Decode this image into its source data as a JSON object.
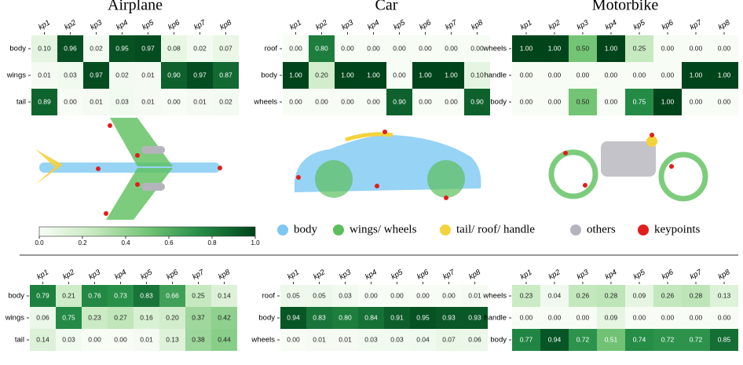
{
  "chart_data": [
    {
      "type": "heatmap",
      "title": "Airplane",
      "x": [
        "kp1",
        "kp2",
        "kp3",
        "kp4",
        "kp5",
        "kp6",
        "kp7",
        "kp8"
      ],
      "y": [
        "body",
        "wings",
        "tail"
      ],
      "values": [
        [
          0.1,
          0.96,
          0.02,
          0.95,
          0.97,
          0.08,
          0.02,
          0.07
        ],
        [
          0.01,
          0.03,
          0.97,
          0.02,
          0.01,
          0.9,
          0.97,
          0.87
        ],
        [
          0.89,
          0.0,
          0.01,
          0.03,
          0.01,
          0.0,
          0.01,
          0.02
        ]
      ],
      "value_labels": [
        [
          "0.10",
          "0.96",
          "0.02",
          "0.95",
          "0.97",
          "0.08",
          "0.02",
          "0.07"
        ],
        [
          "0.01",
          "0.03",
          "0.97",
          "0.02",
          "0.01",
          "0.90",
          "0.97",
          "0.87"
        ],
        [
          "0.89",
          "0.00",
          "0.01",
          "0.03",
          "0.01",
          "0.00",
          "0.01",
          "0.02"
        ]
      ]
    },
    {
      "type": "heatmap",
      "title": "Car",
      "x": [
        "kp1",
        "kp2",
        "kp3",
        "kp4",
        "kp5",
        "kp6",
        "kp7",
        "kp8"
      ],
      "y": [
        "roof",
        "body",
        "wheels"
      ],
      "values": [
        [
          0,
          0.8,
          0,
          0,
          0,
          0,
          0,
          0
        ],
        [
          1,
          0.2,
          1,
          1,
          0,
          1,
          1,
          0.1
        ],
        [
          0,
          0,
          0,
          0,
          0.9,
          0,
          0,
          0.9
        ]
      ],
      "value_labels": [
        [
          "0.00",
          "0.80",
          "0.00",
          "0.00",
          "0.00",
          "0.00",
          "0.00",
          "0.00"
        ],
        [
          "1.00",
          "0.20",
          "1.00",
          "1.00",
          "0.00",
          "1.00",
          "1.00",
          "0.10"
        ],
        [
          "0.00",
          "0.00",
          "0.00",
          "0.00",
          "0.90",
          "0.00",
          "0.00",
          "0.90"
        ]
      ]
    },
    {
      "type": "heatmap",
      "title": "Motorbike",
      "x": [
        "kp1",
        "kp2",
        "kp3",
        "kp4",
        "kp5",
        "kp6",
        "kp7",
        "kp8"
      ],
      "y": [
        "wheels",
        "handle",
        "body"
      ],
      "values": [
        [
          1,
          1,
          0.5,
          1,
          0.25,
          0,
          0,
          0
        ],
        [
          0,
          0,
          0,
          0,
          0,
          0,
          1,
          1
        ],
        [
          0,
          0,
          0.5,
          0,
          0.75,
          1,
          0,
          0
        ]
      ],
      "value_labels": [
        [
          "1.00",
          "1.00",
          "0.50",
          "1.00",
          "0.25",
          "0.00",
          "0.00",
          "0.00"
        ],
        [
          "0.00",
          "0.00",
          "0.00",
          "0.00",
          "0.00",
          "0.00",
          "1.00",
          "1.00"
        ],
        [
          "0.00",
          "0.00",
          "0.50",
          "0.00",
          "0.75",
          "1.00",
          "0.00",
          "0.00"
        ]
      ]
    },
    {
      "type": "heatmap",
      "x": [
        "kp1",
        "kp2",
        "kp3",
        "kp4",
        "kp5",
        "kp6",
        "kp7",
        "kp8"
      ],
      "y": [
        "body",
        "wings",
        "tail"
      ],
      "values": [
        [
          0.79,
          0.21,
          0.76,
          0.73,
          0.83,
          0.66,
          0.25,
          0.14
        ],
        [
          0.06,
          0.75,
          0.23,
          0.27,
          0.16,
          0.2,
          0.37,
          0.42
        ],
        [
          0.14,
          0.03,
          0,
          0,
          0.01,
          0.13,
          0.38,
          0.44
        ]
      ],
      "value_labels": [
        [
          "0.79",
          "0.21",
          "0.76",
          "0.73",
          "0.83",
          "0.66",
          "0.25",
          "0.14"
        ],
        [
          "0.06",
          "0.75",
          "0.23",
          "0.27",
          "0.16",
          "0.20",
          "0.37",
          "0.42"
        ],
        [
          "0.14",
          "0.03",
          "0.00",
          "0.00",
          "0.01",
          "0.13",
          "0.38",
          "0.44"
        ]
      ]
    },
    {
      "type": "heatmap",
      "x": [
        "kp1",
        "kp2",
        "kp3",
        "kp4",
        "kp5",
        "kp6",
        "kp7",
        "kp8"
      ],
      "y": [
        "roof",
        "body",
        "wheels"
      ],
      "values": [
        [
          0.05,
          0.05,
          0.03,
          0,
          0,
          0,
          0,
          0.01
        ],
        [
          0.94,
          0.83,
          0.8,
          0.84,
          0.91,
          0.95,
          0.93,
          0.93
        ],
        [
          0,
          0.01,
          0.01,
          0.03,
          0.03,
          0.04,
          0.07,
          0.06
        ]
      ],
      "value_labels": [
        [
          "0.05",
          "0.05",
          "0.03",
          "0.00",
          "0.00",
          "0.00",
          "0.00",
          "0.01"
        ],
        [
          "0.94",
          "0.83",
          "0.80",
          "0.84",
          "0.91",
          "0.95",
          "0.93",
          "0.93"
        ],
        [
          "0.00",
          "0.01",
          "0.01",
          "0.03",
          "0.03",
          "0.04",
          "0.07",
          "0.06"
        ]
      ]
    },
    {
      "type": "heatmap",
      "x": [
        "kp1",
        "kp2",
        "kp3",
        "kp4",
        "kp5",
        "kp6",
        "kp7",
        "kp8"
      ],
      "y": [
        "wheels",
        "handle",
        "body"
      ],
      "values": [
        [
          0.23,
          0.04,
          0.26,
          0.28,
          0.09,
          0.26,
          0.28,
          0.13
        ],
        [
          0,
          0,
          0,
          0.09,
          0,
          0,
          0,
          0
        ],
        [
          0.77,
          0.94,
          0.72,
          0.51,
          0.74,
          0.72,
          0.72,
          0.85
        ]
      ],
      "value_labels": [
        [
          "0.23",
          "0.04",
          "0.26",
          "0.28",
          "0.09",
          "0.26",
          "0.28",
          "0.13"
        ],
        [
          "0.00",
          "0.00",
          "0.00",
          "0.09",
          "0.00",
          "0.00",
          "0.00",
          "0.00"
        ],
        [
          "0.77",
          "0.94",
          "0.72",
          "0.51",
          "0.74",
          "0.72",
          "0.72",
          "0.85"
        ]
      ]
    }
  ],
  "colorbar": {
    "lim": [
      0,
      1
    ],
    "ticks": [
      {
        "value": 0,
        "label": "0.0"
      },
      {
        "value": 0.2,
        "label": "0.2"
      },
      {
        "value": 0.4,
        "label": "0.4"
      },
      {
        "value": 0.6,
        "label": "0.6"
      },
      {
        "value": 0.8,
        "label": "0.8"
      },
      {
        "value": 1,
        "label": "1.0"
      }
    ]
  },
  "legend": [
    {
      "name": "body",
      "color": "#7cc8f2"
    },
    {
      "name": "wings/ wheels",
      "color": "#5cbf5c"
    },
    {
      "name": "tail/ roof/ handle",
      "color": "#f4d23c"
    },
    {
      "name": "others",
      "color": "#b4b4bc"
    },
    {
      "name": "keypoints",
      "color": "#e01e1e"
    }
  ]
}
